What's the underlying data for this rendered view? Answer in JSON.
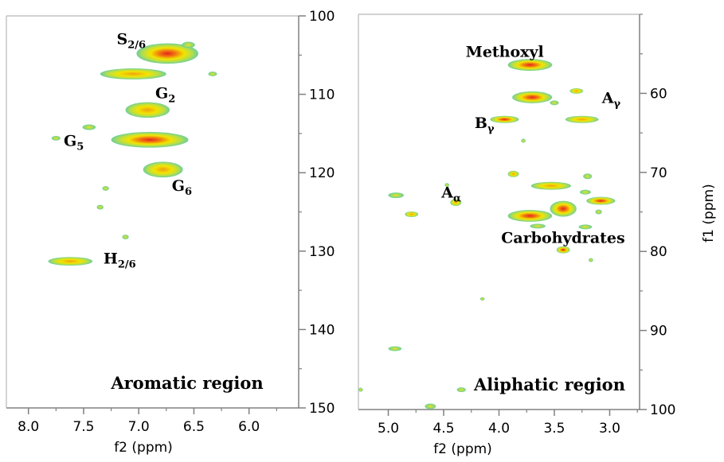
{
  "chart_data": [
    {
      "type": "heatmap",
      "name": "aromatic",
      "region_label": "Aromatic region",
      "xlabel": "f2 (ppm)",
      "ylabel": "",
      "xlim": [
        8.2,
        5.55
      ],
      "ylim": [
        100,
        150
      ],
      "x_ticks": [
        8.0,
        7.5,
        7.0,
        6.5,
        6.0
      ],
      "x_tick_labels": [
        "8.0",
        "7.5",
        "7.0",
        "6.5",
        "6.0"
      ],
      "y_ticks": [
        100,
        110,
        120,
        130,
        140,
        150
      ],
      "y_tick_labels": [
        "100",
        "110",
        "120",
        "130",
        "140",
        "150"
      ],
      "y_axis_side": "right",
      "colors": {
        "low": "#6ccf9a",
        "mid": "#f2e400",
        "high": "#e8241c"
      },
      "peaks": [
        {
          "label": "S",
          "sub": "2/6",
          "x": 6.74,
          "y": 104.8,
          "rx": 0.28,
          "ry": 1.3,
          "intensity": 0.95
        },
        {
          "label": "",
          "sub": "",
          "x": 6.55,
          "y": 103.7,
          "rx": 0.06,
          "ry": 0.4,
          "intensity": 0.35
        },
        {
          "label": "",
          "sub": "",
          "x": 7.05,
          "y": 107.4,
          "rx": 0.3,
          "ry": 0.7,
          "intensity": 0.45
        },
        {
          "label": "",
          "sub": "",
          "x": 6.33,
          "y": 107.4,
          "rx": 0.04,
          "ry": 0.3,
          "intensity": 0.2
        },
        {
          "label": "G",
          "sub": "2",
          "x": 6.92,
          "y": 112.0,
          "rx": 0.2,
          "ry": 1.0,
          "intensity": 0.65
        },
        {
          "label": "",
          "sub": "",
          "x": 7.45,
          "y": 114.2,
          "rx": 0.06,
          "ry": 0.35,
          "intensity": 0.3
        },
        {
          "label": "",
          "sub": "",
          "x": 7.75,
          "y": 115.6,
          "rx": 0.04,
          "ry": 0.3,
          "intensity": 0.25
        },
        {
          "label": "G",
          "sub": "5",
          "x": 6.9,
          "y": 115.8,
          "rx": 0.35,
          "ry": 1.0,
          "intensity": 0.9
        },
        {
          "label": "G",
          "sub": "6",
          "x": 6.78,
          "y": 119.6,
          "rx": 0.18,
          "ry": 1.0,
          "intensity": 0.55
        },
        {
          "label": "",
          "sub": "",
          "x": 7.3,
          "y": 122.0,
          "rx": 0.03,
          "ry": 0.3,
          "intensity": 0.2
        },
        {
          "label": "",
          "sub": "",
          "x": 7.35,
          "y": 124.4,
          "rx": 0.03,
          "ry": 0.3,
          "intensity": 0.2
        },
        {
          "label": "",
          "sub": "",
          "x": 7.12,
          "y": 128.2,
          "rx": 0.03,
          "ry": 0.3,
          "intensity": 0.2
        },
        {
          "label": "H",
          "sub": "2/6",
          "x": 7.62,
          "y": 131.3,
          "rx": 0.2,
          "ry": 0.55,
          "intensity": 0.5
        }
      ],
      "annotations": [
        {
          "text": "S",
          "sub": "2/6",
          "x": 7.2,
          "y": 103.6
        },
        {
          "text": "G",
          "sub": "2",
          "x": 6.85,
          "y": 110.5
        },
        {
          "text": "G",
          "sub": "5",
          "x": 7.68,
          "y": 116.6
        },
        {
          "text": "G",
          "sub": "6",
          "x": 6.7,
          "y": 122.3
        },
        {
          "text": "H",
          "sub": "2/6",
          "x": 7.32,
          "y": 131.6
        }
      ]
    },
    {
      "type": "heatmap",
      "name": "aliphatic",
      "region_label": "Aliphatic region",
      "xlabel": "f2 (ppm)",
      "ylabel": "f1 (ppm)",
      "xlim": [
        5.27,
        2.73
      ],
      "ylim": [
        50,
        100
      ],
      "x_ticks": [
        5.0,
        4.5,
        4.0,
        3.5,
        3.0
      ],
      "x_tick_labels": [
        "5.0",
        "4.5",
        "4.0",
        "3.5",
        "3.0"
      ],
      "y_ticks": [
        60,
        70,
        80,
        90,
        100
      ],
      "y_tick_labels": [
        "60",
        "70",
        "80",
        "90",
        "100"
      ],
      "y_axis_side": "right",
      "colors": {
        "low": "#6ccf9a",
        "mid": "#f2e400",
        "high": "#e8241c"
      },
      "peaks": [
        {
          "label": "Methoxyl",
          "sub": "",
          "x": 3.72,
          "y": 56.4,
          "rx": 0.2,
          "ry": 0.75,
          "intensity": 1.0
        },
        {
          "label": "",
          "sub": "",
          "x": 3.7,
          "y": 60.5,
          "rx": 0.18,
          "ry": 0.75,
          "intensity": 0.85
        },
        {
          "label": "",
          "sub": "",
          "x": 3.3,
          "y": 59.7,
          "rx": 0.06,
          "ry": 0.35,
          "intensity": 0.4
        },
        {
          "label": "",
          "sub": "",
          "x": 3.5,
          "y": 61.2,
          "rx": 0.04,
          "ry": 0.3,
          "intensity": 0.3
        },
        {
          "label": "A",
          "sub": "γ",
          "x": 3.25,
          "y": 63.3,
          "rx": 0.15,
          "ry": 0.45,
          "intensity": 0.45
        },
        {
          "label": "B",
          "sub": "γ",
          "x": 3.95,
          "y": 63.3,
          "rx": 0.13,
          "ry": 0.45,
          "intensity": 0.7
        },
        {
          "label": "",
          "sub": "",
          "x": 3.78,
          "y": 66.0,
          "rx": 0.02,
          "ry": 0.25,
          "intensity": 0.2
        },
        {
          "label": "",
          "sub": "",
          "x": 3.87,
          "y": 70.2,
          "rx": 0.05,
          "ry": 0.4,
          "intensity": 0.4
        },
        {
          "label": "",
          "sub": "",
          "x": 3.2,
          "y": 70.5,
          "rx": 0.04,
          "ry": 0.35,
          "intensity": 0.35
        },
        {
          "label": "",
          "sub": "",
          "x": 3.53,
          "y": 71.7,
          "rx": 0.18,
          "ry": 0.5,
          "intensity": 0.55
        },
        {
          "label": "",
          "sub": "",
          "x": 3.22,
          "y": 72.5,
          "rx": 0.05,
          "ry": 0.3,
          "intensity": 0.3
        },
        {
          "label": "",
          "sub": "",
          "x": 3.72,
          "y": 75.5,
          "rx": 0.2,
          "ry": 0.75,
          "intensity": 0.9
        },
        {
          "label": "",
          "sub": "",
          "x": 3.42,
          "y": 74.6,
          "rx": 0.12,
          "ry": 1.0,
          "intensity": 0.85
        },
        {
          "label": "",
          "sub": "",
          "x": 3.08,
          "y": 73.6,
          "rx": 0.13,
          "ry": 0.5,
          "intensity": 0.85
        },
        {
          "label": "",
          "sub": "",
          "x": 3.1,
          "y": 75.0,
          "rx": 0.03,
          "ry": 0.3,
          "intensity": 0.3
        },
        {
          "label": "",
          "sub": "",
          "x": 3.22,
          "y": 76.9,
          "rx": 0.06,
          "ry": 0.3,
          "intensity": 0.3
        },
        {
          "label": "",
          "sub": "",
          "x": 3.65,
          "y": 76.8,
          "rx": 0.07,
          "ry": 0.3,
          "intensity": 0.3
        },
        {
          "label": "A",
          "sub": "α",
          "x": 4.39,
          "y": 73.8,
          "rx": 0.05,
          "ry": 0.45,
          "intensity": 0.4
        },
        {
          "label": "",
          "sub": "",
          "x": 4.47,
          "y": 71.6,
          "rx": 0.02,
          "ry": 0.25,
          "intensity": 0.2
        },
        {
          "label": "",
          "sub": "",
          "x": 4.93,
          "y": 72.9,
          "rx": 0.07,
          "ry": 0.35,
          "intensity": 0.35
        },
        {
          "label": "",
          "sub": "",
          "x": 4.79,
          "y": 75.3,
          "rx": 0.06,
          "ry": 0.35,
          "intensity": 0.4
        },
        {
          "label": "",
          "sub": "",
          "x": 3.42,
          "y": 79.8,
          "rx": 0.06,
          "ry": 0.45,
          "intensity": 0.7
        },
        {
          "label": "",
          "sub": "",
          "x": 3.17,
          "y": 81.1,
          "rx": 0.02,
          "ry": 0.25,
          "intensity": 0.2
        },
        {
          "label": "",
          "sub": "",
          "x": 4.15,
          "y": 86.0,
          "rx": 0.02,
          "ry": 0.2,
          "intensity": 0.15
        },
        {
          "label": "",
          "sub": "",
          "x": 4.94,
          "y": 92.3,
          "rx": 0.06,
          "ry": 0.3,
          "intensity": 0.3
        },
        {
          "label": "",
          "sub": "",
          "x": 4.34,
          "y": 97.5,
          "rx": 0.04,
          "ry": 0.3,
          "intensity": 0.25
        },
        {
          "label": "",
          "sub": "",
          "x": 5.25,
          "y": 97.5,
          "rx": 0.02,
          "ry": 0.25,
          "intensity": 0.2
        },
        {
          "label": "",
          "sub": "",
          "x": 4.62,
          "y": 99.6,
          "rx": 0.05,
          "ry": 0.35,
          "intensity": 0.3
        }
      ],
      "annotations": [
        {
          "text": "Methoxyl",
          "sub": "",
          "x": 4.3,
          "y": 55.4
        },
        {
          "text": "A",
          "sub": "γ",
          "x": 3.07,
          "y": 61.2
        },
        {
          "text": "B",
          "sub": "γ",
          "x": 4.22,
          "y": 64.4
        },
        {
          "text": "A",
          "sub": "α",
          "x": 4.52,
          "y": 73.2
        },
        {
          "text": "Carbohydrates",
          "sub": "",
          "x": 3.98,
          "y": 78.9
        }
      ]
    }
  ]
}
